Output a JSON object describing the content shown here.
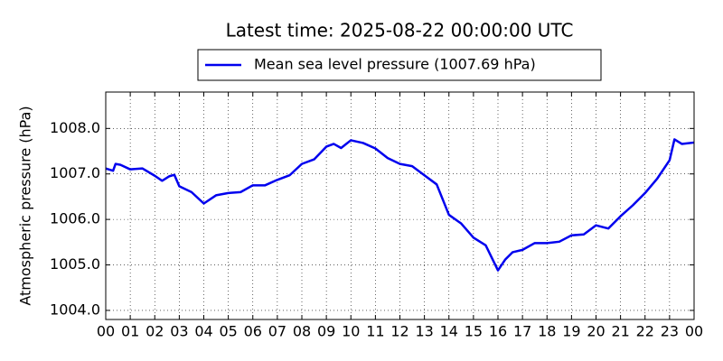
{
  "chart_data": {
    "type": "line",
    "title": "Latest time: 2025-08-22 00:00:00 UTC",
    "y_label": "Atmospheric pressure (hPa)",
    "x": [
      0,
      0.3,
      0.4,
      0.6,
      1.0,
      1.5,
      2.0,
      2.3,
      2.6,
      2.8,
      3.0,
      3.5,
      4.0,
      4.5,
      5.0,
      5.5,
      6.0,
      6.5,
      7.0,
      7.5,
      8.0,
      8.5,
      9.0,
      9.3,
      9.6,
      10.0,
      10.5,
      11.0,
      11.5,
      12.0,
      12.5,
      13.0,
      13.5,
      14.0,
      14.5,
      15.0,
      15.5,
      16.0,
      16.3,
      16.6,
      17.0,
      17.5,
      18.0,
      18.5,
      19.0,
      19.5,
      20.0,
      20.5,
      21.0,
      21.5,
      22.0,
      22.5,
      23.0,
      23.2,
      23.5,
      24.0
    ],
    "series": [
      {
        "name": "Mean sea level pressure (1007.69 hPa)",
        "color": "#0000ee",
        "values": [
          1007.12,
          1007.07,
          1007.22,
          1007.2,
          1007.1,
          1007.12,
          1006.96,
          1006.85,
          1006.95,
          1006.98,
          1006.73,
          1006.6,
          1006.35,
          1006.53,
          1006.58,
          1006.6,
          1006.75,
          1006.75,
          1006.87,
          1006.97,
          1007.22,
          1007.32,
          1007.6,
          1007.66,
          1007.57,
          1007.74,
          1007.68,
          1007.56,
          1007.35,
          1007.22,
          1007.17,
          1006.97,
          1006.77,
          1006.1,
          1005.91,
          1005.6,
          1005.43,
          1004.88,
          1005.12,
          1005.28,
          1005.33,
          1005.48,
          1005.48,
          1005.51,
          1005.65,
          1005.67,
          1005.87,
          1005.8,
          1006.07,
          1006.31,
          1006.58,
          1006.9,
          1007.3,
          1007.76,
          1007.66,
          1007.69
        ]
      }
    ],
    "xlim": [
      0,
      24
    ],
    "xticks": [
      {
        "value": 0,
        "label": "00"
      },
      {
        "value": 1,
        "label": "01"
      },
      {
        "value": 2,
        "label": "02"
      },
      {
        "value": 3,
        "label": "03"
      },
      {
        "value": 4,
        "label": "04"
      },
      {
        "value": 5,
        "label": "05"
      },
      {
        "value": 6,
        "label": "06"
      },
      {
        "value": 7,
        "label": "07"
      },
      {
        "value": 8,
        "label": "08"
      },
      {
        "value": 9,
        "label": "09"
      },
      {
        "value": 10,
        "label": "10"
      },
      {
        "value": 11,
        "label": "11"
      },
      {
        "value": 12,
        "label": "12"
      },
      {
        "value": 13,
        "label": "13"
      },
      {
        "value": 14,
        "label": "14"
      },
      {
        "value": 15,
        "label": "15"
      },
      {
        "value": 16,
        "label": "16"
      },
      {
        "value": 17,
        "label": "17"
      },
      {
        "value": 18,
        "label": "18"
      },
      {
        "value": 19,
        "label": "19"
      },
      {
        "value": 20,
        "label": "20"
      },
      {
        "value": 21,
        "label": "21"
      },
      {
        "value": 22,
        "label": "22"
      },
      {
        "value": 23,
        "label": "23"
      },
      {
        "value": 24,
        "label": "00"
      }
    ],
    "ylim": [
      1003.8,
      1008.8
    ],
    "yticks": [
      {
        "value": 1004,
        "label": "1004.0"
      },
      {
        "value": 1005,
        "label": "1005.0"
      },
      {
        "value": 1006,
        "label": "1006.0"
      },
      {
        "value": 1007,
        "label": "1007.0"
      },
      {
        "value": 1008,
        "label": "1008.0"
      }
    ],
    "grid": true,
    "legend": "top"
  }
}
